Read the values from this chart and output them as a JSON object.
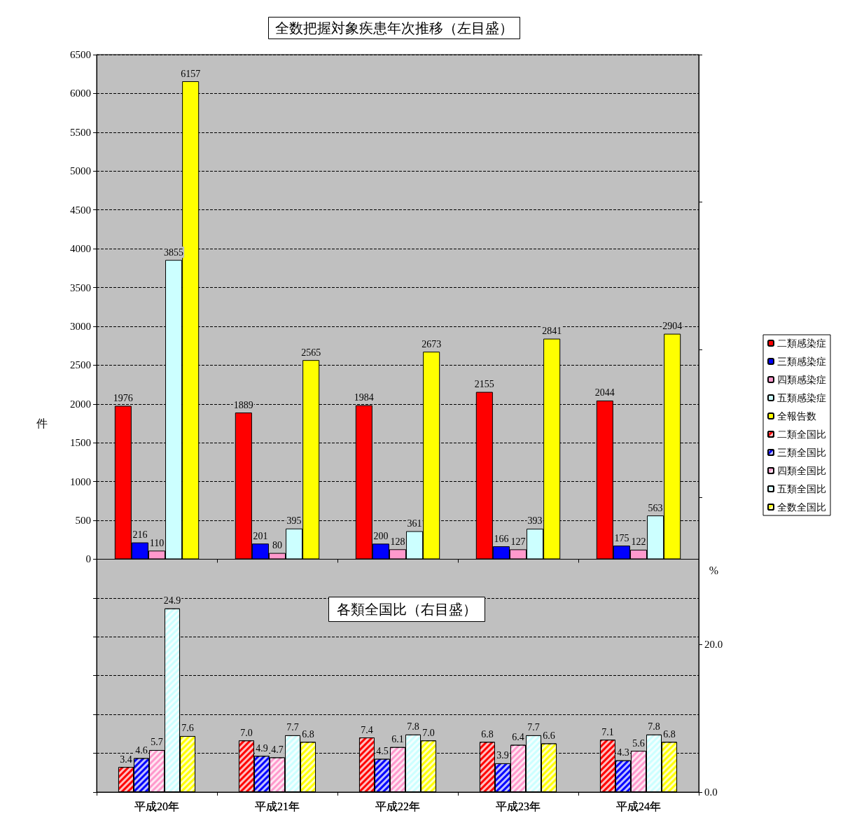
{
  "chart_data": {
    "type": "bar",
    "title": "全数把握対象疾患年次推移（左目盛）",
    "subtitle": "各類全国比（右目盛）",
    "ylabel": "件",
    "y2label": "%",
    "categories": [
      "平成20年",
      "平成21年",
      "平成22年",
      "平成23年",
      "平成24年"
    ],
    "series": [
      {
        "name": "二類感染症",
        "color": "#ff0000",
        "values": [
          1976,
          1889,
          1984,
          2155,
          2044
        ]
      },
      {
        "name": "三類感染症",
        "color": "#0000ff",
        "values": [
          216,
          201,
          200,
          166,
          175
        ]
      },
      {
        "name": "四類感染症",
        "color": "#ff99cc",
        "values": [
          110,
          80,
          128,
          127,
          122
        ]
      },
      {
        "name": "五類感染症",
        "color": "#ccffff",
        "values": [
          3855,
          395,
          361,
          393,
          563
        ]
      },
      {
        "name": "全報告数",
        "color": "#ffff00",
        "values": [
          6157,
          2565,
          2673,
          2841,
          2904
        ]
      },
      {
        "name": "二類全国比",
        "color": "#ff0000",
        "axis": "y2",
        "values": [
          3.4,
          7.0,
          7.4,
          6.8,
          7.1
        ],
        "value_labels": [
          "3.4",
          "7.0",
          "7.4",
          "6.8",
          "7.1"
        ]
      },
      {
        "name": "三類全国比",
        "color": "#0000ff",
        "axis": "y2",
        "values": [
          4.6,
          4.9,
          4.5,
          3.9,
          4.3
        ],
        "value_labels": [
          "4.6",
          "4.9",
          "4.5",
          "3.9",
          "4.3"
        ]
      },
      {
        "name": "四類全国比",
        "color": "#ff99cc",
        "axis": "y2",
        "values": [
          5.7,
          4.7,
          6.1,
          6.4,
          5.6
        ],
        "value_labels": [
          "5.7",
          "4.7",
          "6.1",
          "6.4",
          "5.6"
        ]
      },
      {
        "name": "五類全国比",
        "color": "#ccffff",
        "axis": "y2",
        "values": [
          24.9,
          7.7,
          7.8,
          7.7,
          7.8
        ],
        "value_labels": [
          "24.9",
          "7.7",
          "7.8",
          "7.7",
          "7.8"
        ]
      },
      {
        "name": "全数全国比",
        "color": "#ffff00",
        "axis": "y2",
        "values": [
          7.6,
          6.8,
          7.0,
          6.6,
          6.8
        ],
        "value_labels": [
          "7.6",
          "6.8",
          "7.0",
          "6.6",
          "6.8"
        ]
      }
    ],
    "ylim": [
      -3000,
      6500
    ],
    "yticks": [
      {
        "value": -3000,
        "label": null
      },
      {
        "value": -2500,
        "label": null
      },
      {
        "value": -2000,
        "label": null
      },
      {
        "value": -1500,
        "label": null
      },
      {
        "value": -1000,
        "label": null
      },
      {
        "value": -500,
        "label": null
      },
      0,
      500,
      1000,
      1500,
      2000,
      2500,
      3000,
      3500,
      4000,
      4500,
      5000,
      5500,
      6000,
      6500
    ],
    "y2lim": [
      0,
      100
    ],
    "y2ticks": [
      {
        "value": 0,
        "label": "0.0"
      },
      {
        "value": 20,
        "label": "20.0"
      },
      {
        "value": 40,
        "label": null
      },
      {
        "value": 60,
        "label": null
      },
      {
        "value": 80,
        "label": null
      },
      {
        "value": 100,
        "label": null
      }
    ],
    "data_labels": true,
    "grid": "y",
    "legend": "right"
  }
}
